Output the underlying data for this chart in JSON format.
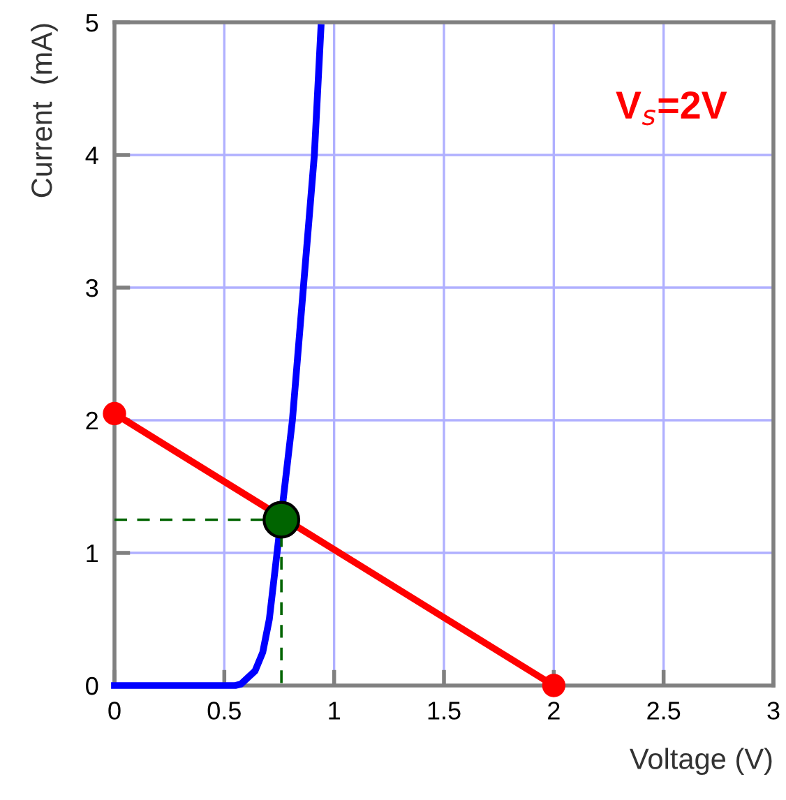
{
  "chart_data": {
    "type": "line",
    "xlabel": "Voltage (V)",
    "ylabel": "Current  (mA)",
    "xlim": [
      0,
      3
    ],
    "ylim": [
      0,
      5
    ],
    "xticks": [
      0,
      0.5,
      1,
      1.5,
      2,
      2.5,
      3
    ],
    "yticks": [
      0,
      1,
      2,
      3,
      4,
      5
    ],
    "grid": true,
    "legend": false,
    "annotations": [
      "V$_{s}$=2V"
    ],
    "series": [
      {
        "color": "#0000ff",
        "marker": "none",
        "line_style": "solid",
        "x": [
          0,
          0.55,
          0.575,
          0.64,
          0.675,
          0.705,
          0.74,
          0.81,
          0.86,
          0.91,
          0.94
        ],
        "values": [
          0,
          0,
          0.01,
          0.11,
          0.25,
          0.5,
          1,
          2,
          3,
          4,
          4.96
        ]
      },
      {
        "color": "#ff0000",
        "marker": "circle",
        "line_style": "solid",
        "x": [
          0,
          2
        ],
        "values": [
          2.05,
          0
        ]
      },
      {
        "color": "#006400",
        "marker": "none",
        "line_style": "dashed",
        "x": [
          0,
          0.76,
          0.76
        ],
        "values": [
          1.25,
          1.25,
          0
        ]
      },
      {
        "type": "scatter",
        "color": "#006400",
        "marker": "circle",
        "x": [
          0.76
        ],
        "values": [
          1.25
        ]
      }
    ]
  }
}
